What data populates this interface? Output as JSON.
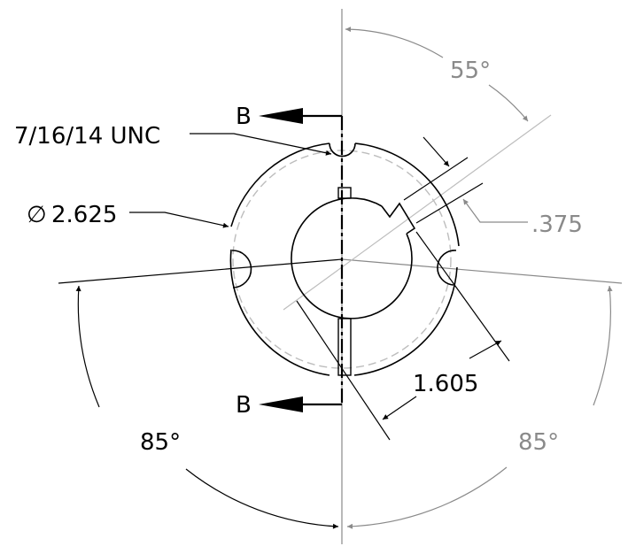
{
  "drawing": {
    "section_label_top": "B",
    "section_label_bottom": "B",
    "thread_callout": "7/16/14 UNC",
    "diameter_symbol": "∅",
    "diameter_value": "2.625",
    "key_width": ".375",
    "bore_dimension": "1.605",
    "angle_top_right": "55°",
    "angle_bottom_left": "85°",
    "angle_bottom_right": "85°"
  },
  "colors": {
    "line": "#000000",
    "dimension_gray": "#8a8a8a",
    "hidden_circle": "#bdbdbd"
  }
}
